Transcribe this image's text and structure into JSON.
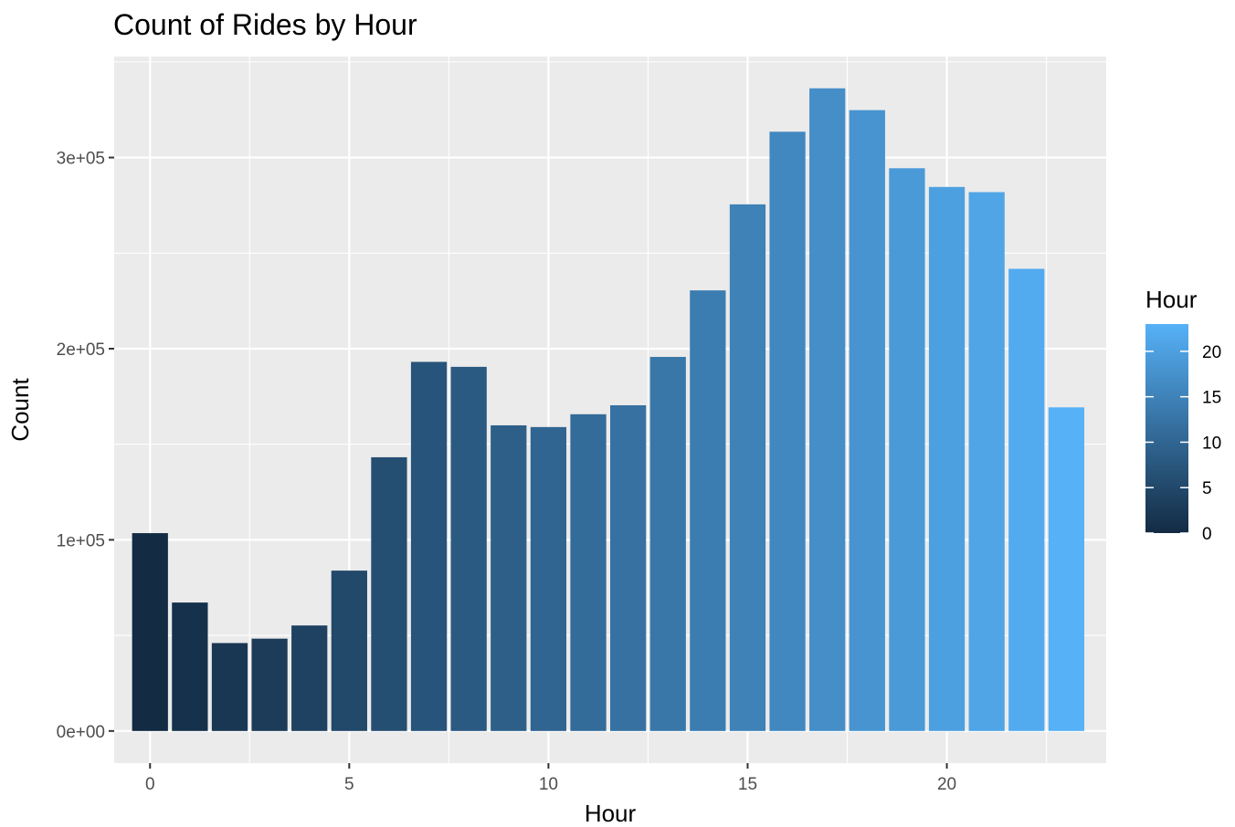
{
  "chart_data": {
    "type": "bar",
    "title": "Count of Rides by Hour",
    "xlabel": "Hour",
    "ylabel": "Count",
    "categories": [
      0,
      1,
      2,
      3,
      4,
      5,
      6,
      7,
      8,
      9,
      10,
      11,
      12,
      13,
      14,
      15,
      16,
      17,
      18,
      19,
      20,
      21,
      22,
      23
    ],
    "values": [
      103500,
      67200,
      46000,
      48300,
      55200,
      83900,
      143200,
      193100,
      190500,
      159900,
      159000,
      165700,
      170400,
      195700,
      230500,
      275500,
      313500,
      336200,
      324800,
      294400,
      284600,
      281900,
      241800,
      169300
    ],
    "xlim": [
      -0.9,
      24.0
    ],
    "ylim": [
      -16800,
      352800
    ],
    "x_ticks": [
      "0",
      "5",
      "10",
      "15",
      "20"
    ],
    "x_tick_values": [
      0,
      5,
      10,
      15,
      20
    ],
    "y_ticks": [
      "0e+00",
      "1e+05",
      "2e+05",
      "3e+05"
    ],
    "y_tick_values": [
      0,
      100000,
      200000,
      300000
    ],
    "grid": true,
    "legend": {
      "title": "Hour",
      "placement": "right",
      "type": "colorbar",
      "labels": [
        "0",
        "5",
        "10",
        "15",
        "20"
      ],
      "label_values": [
        0,
        5,
        10,
        15,
        20
      ],
      "range": [
        0,
        23
      ],
      "color_low": "#132B43",
      "color_high": "#56B1F7"
    },
    "colors": {
      "panel_background": "#EBEBEB",
      "grid": "#FFFFFF",
      "low": "#132B43",
      "high": "#56B1F7"
    }
  }
}
